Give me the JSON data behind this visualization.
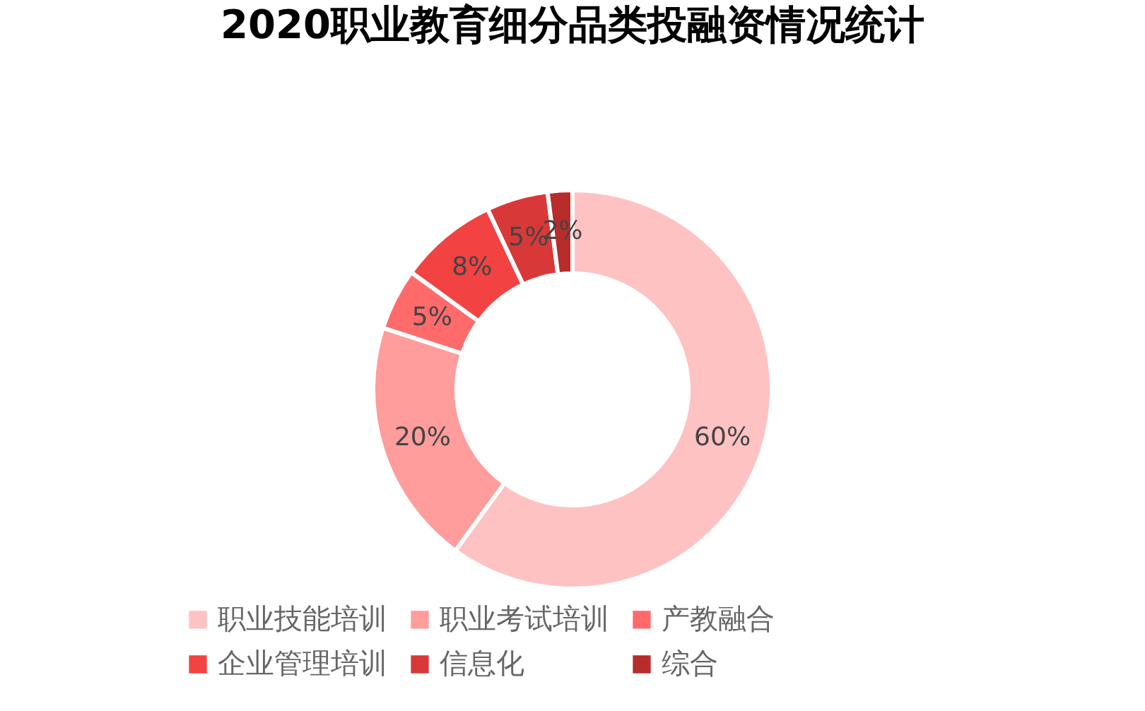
{
  "chart_data": {
    "type": "donut",
    "title": "2020职业教育细分品类投融资情况统计",
    "categories": [
      "职业技能培训",
      "职业考试培训",
      "产教融合",
      "企业管理培训",
      "信息化",
      "综合"
    ],
    "values": [
      60,
      20,
      5,
      8,
      5,
      2
    ],
    "colors": [
      "#ffc2c2",
      "#ff9c9c",
      "#ff6b6b",
      "#f24242",
      "#d93838",
      "#b82c2c"
    ],
    "value_labels": [
      "60%",
      "20%",
      "5%",
      "8%",
      "5%",
      "2%"
    ],
    "legend": "bottom"
  }
}
